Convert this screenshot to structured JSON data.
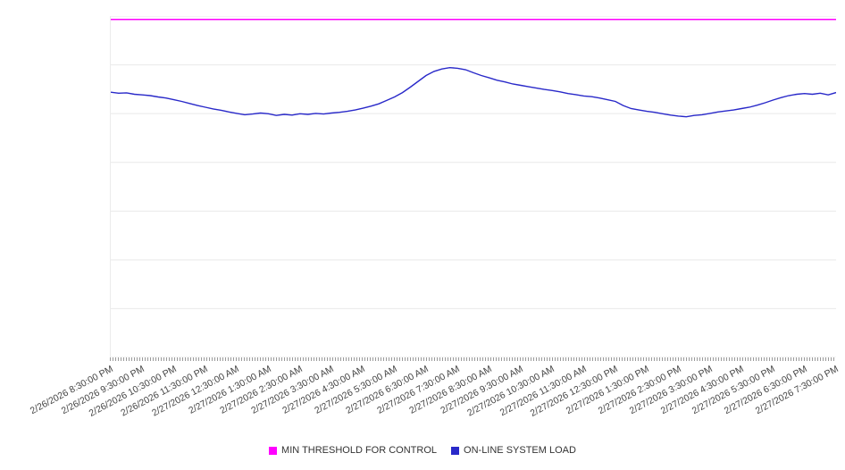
{
  "chart_data": {
    "type": "line",
    "title": "",
    "legend_position": "bottom",
    "grid": true,
    "grid_divisions": 7,
    "grid_color": "#e9e9e9",
    "xlim_hours": [
      0,
      23
    ],
    "ylim": [
      0,
      100
    ],
    "y_tick_labels": [],
    "x_tick_labels": [
      "2/26/2026 8:30:00 PM",
      "2/26/2026 9:30:00 PM",
      "2/26/2026 10:30:00 PM",
      "2/26/2026 11:30:00 PM",
      "2/27/2026 12:30:00 AM",
      "2/27/2026 1:30:00 AM",
      "2/27/2026 2:30:00 AM",
      "2/27/2026 3:30:00 AM",
      "2/27/2026 4:30:00 AM",
      "2/27/2026 5:30:00 AM",
      "2/27/2026 6:30:00 AM",
      "2/27/2026 7:30:00 AM",
      "2/27/2026 8:30:00 AM",
      "2/27/2026 9:30:00 AM",
      "2/27/2026 10:30:00 AM",
      "2/27/2026 11:30:00 AM",
      "2/27/2026 12:30:00 PM",
      "2/27/2026 1:30:00 PM",
      "2/27/2026 2:30:00 PM",
      "2/27/2026 3:30:00 PM",
      "2/27/2026 4:30:00 PM",
      "2/27/2026 5:30:00 PM",
      "2/27/2026 6:30:00 PM",
      "2/27/2026 7:30:00 PM"
    ],
    "series": [
      {
        "name": "MIN THRESHOLD FOR CONTROL",
        "type": "threshold-line",
        "color": "#ff00ff",
        "value": 99
      },
      {
        "name": "ON-LINE SYSTEM LOAD",
        "type": "line",
        "color": "#2929c9",
        "points": [
          [
            0,
            77.7
          ],
          [
            0.25,
            77.4
          ],
          [
            0.5,
            77.5
          ],
          [
            0.75,
            77.1
          ],
          [
            1,
            76.9
          ],
          [
            1.25,
            76.7
          ],
          [
            1.5,
            76.3
          ],
          [
            1.75,
            76.0
          ],
          [
            2,
            75.5
          ],
          [
            2.25,
            75.0
          ],
          [
            2.5,
            74.4
          ],
          [
            2.75,
            73.8
          ],
          [
            3,
            73.3
          ],
          [
            3.25,
            72.8
          ],
          [
            3.5,
            72.4
          ],
          [
            3.75,
            71.9
          ],
          [
            4,
            71.5
          ],
          [
            4.25,
            71.1
          ],
          [
            4.5,
            71.3
          ],
          [
            4.75,
            71.6
          ],
          [
            5,
            71.4
          ],
          [
            5.25,
            70.9
          ],
          [
            5.5,
            71.2
          ],
          [
            5.75,
            71.0
          ],
          [
            6,
            71.4
          ],
          [
            6.25,
            71.2
          ],
          [
            6.5,
            71.5
          ],
          [
            6.75,
            71.3
          ],
          [
            7,
            71.6
          ],
          [
            7.25,
            71.8
          ],
          [
            7.5,
            72.1
          ],
          [
            7.75,
            72.5
          ],
          [
            8,
            73.0
          ],
          [
            8.25,
            73.6
          ],
          [
            8.5,
            74.3
          ],
          [
            8.75,
            75.3
          ],
          [
            9,
            76.3
          ],
          [
            9.25,
            77.6
          ],
          [
            9.5,
            79.2
          ],
          [
            9.75,
            80.9
          ],
          [
            10,
            82.6
          ],
          [
            10.25,
            83.8
          ],
          [
            10.5,
            84.5
          ],
          [
            10.75,
            84.9
          ],
          [
            11,
            84.7
          ],
          [
            11.25,
            84.3
          ],
          [
            11.5,
            83.4
          ],
          [
            11.75,
            82.6
          ],
          [
            12,
            81.9
          ],
          [
            12.25,
            81.2
          ],
          [
            12.5,
            80.7
          ],
          [
            12.75,
            80.1
          ],
          [
            13,
            79.7
          ],
          [
            13.25,
            79.3
          ],
          [
            13.5,
            78.9
          ],
          [
            13.75,
            78.5
          ],
          [
            14,
            78.2
          ],
          [
            14.25,
            77.8
          ],
          [
            14.5,
            77.3
          ],
          [
            14.75,
            77.0
          ],
          [
            15,
            76.6
          ],
          [
            15.25,
            76.4
          ],
          [
            15.5,
            76.0
          ],
          [
            15.75,
            75.5
          ],
          [
            16,
            75.0
          ],
          [
            16.25,
            73.8
          ],
          [
            16.5,
            72.9
          ],
          [
            16.75,
            72.5
          ],
          [
            17,
            72.1
          ],
          [
            17.25,
            71.8
          ],
          [
            17.5,
            71.4
          ],
          [
            17.75,
            71.0
          ],
          [
            18,
            70.7
          ],
          [
            18.25,
            70.5
          ],
          [
            18.5,
            70.9
          ],
          [
            18.75,
            71.1
          ],
          [
            19,
            71.5
          ],
          [
            19.25,
            71.9
          ],
          [
            19.5,
            72.2
          ],
          [
            19.75,
            72.5
          ],
          [
            20,
            72.9
          ],
          [
            20.25,
            73.3
          ],
          [
            20.5,
            73.9
          ],
          [
            20.75,
            74.6
          ],
          [
            21,
            75.4
          ],
          [
            21.25,
            76.1
          ],
          [
            21.5,
            76.7
          ],
          [
            21.75,
            77.1
          ],
          [
            22,
            77.3
          ],
          [
            22.25,
            77.1
          ],
          [
            22.5,
            77.4
          ],
          [
            22.75,
            76.9
          ],
          [
            23,
            77.6
          ]
        ]
      }
    ]
  }
}
